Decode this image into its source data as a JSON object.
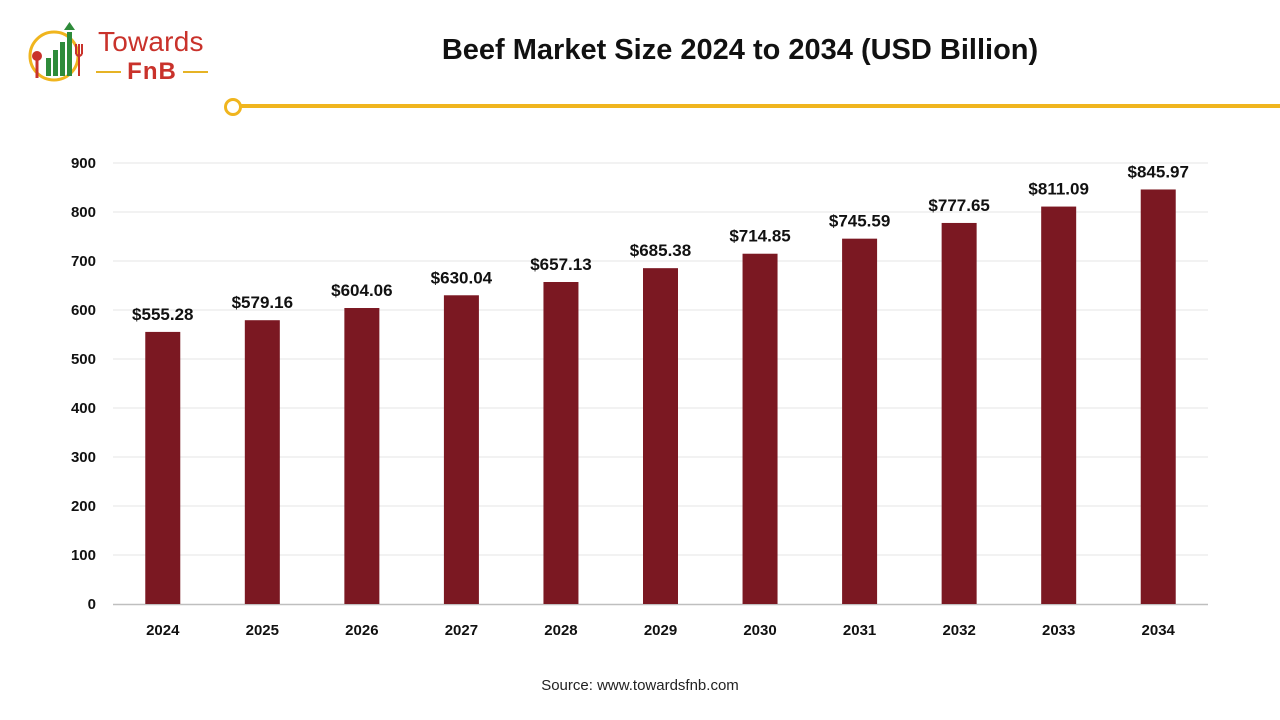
{
  "brand": {
    "name_top": "Towards",
    "name_bottom": "FnB",
    "primary_color": "#c9322b",
    "accent_color": "#f0b51e",
    "icon": "fork-bar-chart-icon"
  },
  "header": {
    "title": "Beef Market Size 2024 to 2034 (USD Billion)"
  },
  "footer": {
    "source": "Source: www.towardsfnb.com"
  },
  "chart_data": {
    "type": "bar",
    "categories": [
      "2024",
      "2025",
      "2026",
      "2027",
      "2028",
      "2029",
      "2030",
      "2031",
      "2032",
      "2033",
      "2034"
    ],
    "values": [
      555.28,
      579.16,
      604.06,
      630.04,
      657.13,
      685.38,
      714.85,
      745.59,
      777.65,
      811.09,
      845.97
    ],
    "value_labels": [
      "$555.28",
      "$579.16",
      "$604.06",
      "$630.04",
      "$657.13",
      "$685.38",
      "$714.85",
      "$745.59",
      "$777.65",
      "$811.09",
      "$845.97"
    ],
    "title": "Beef Market Size 2024 to 2034 (USD Billion)",
    "xlabel": "",
    "ylabel": "",
    "ylim": [
      0,
      900
    ],
    "yticks": [
      0,
      100,
      200,
      300,
      400,
      500,
      600,
      700,
      800,
      900
    ],
    "grid": true,
    "bar_color": "#7b1822",
    "legend": "none"
  }
}
